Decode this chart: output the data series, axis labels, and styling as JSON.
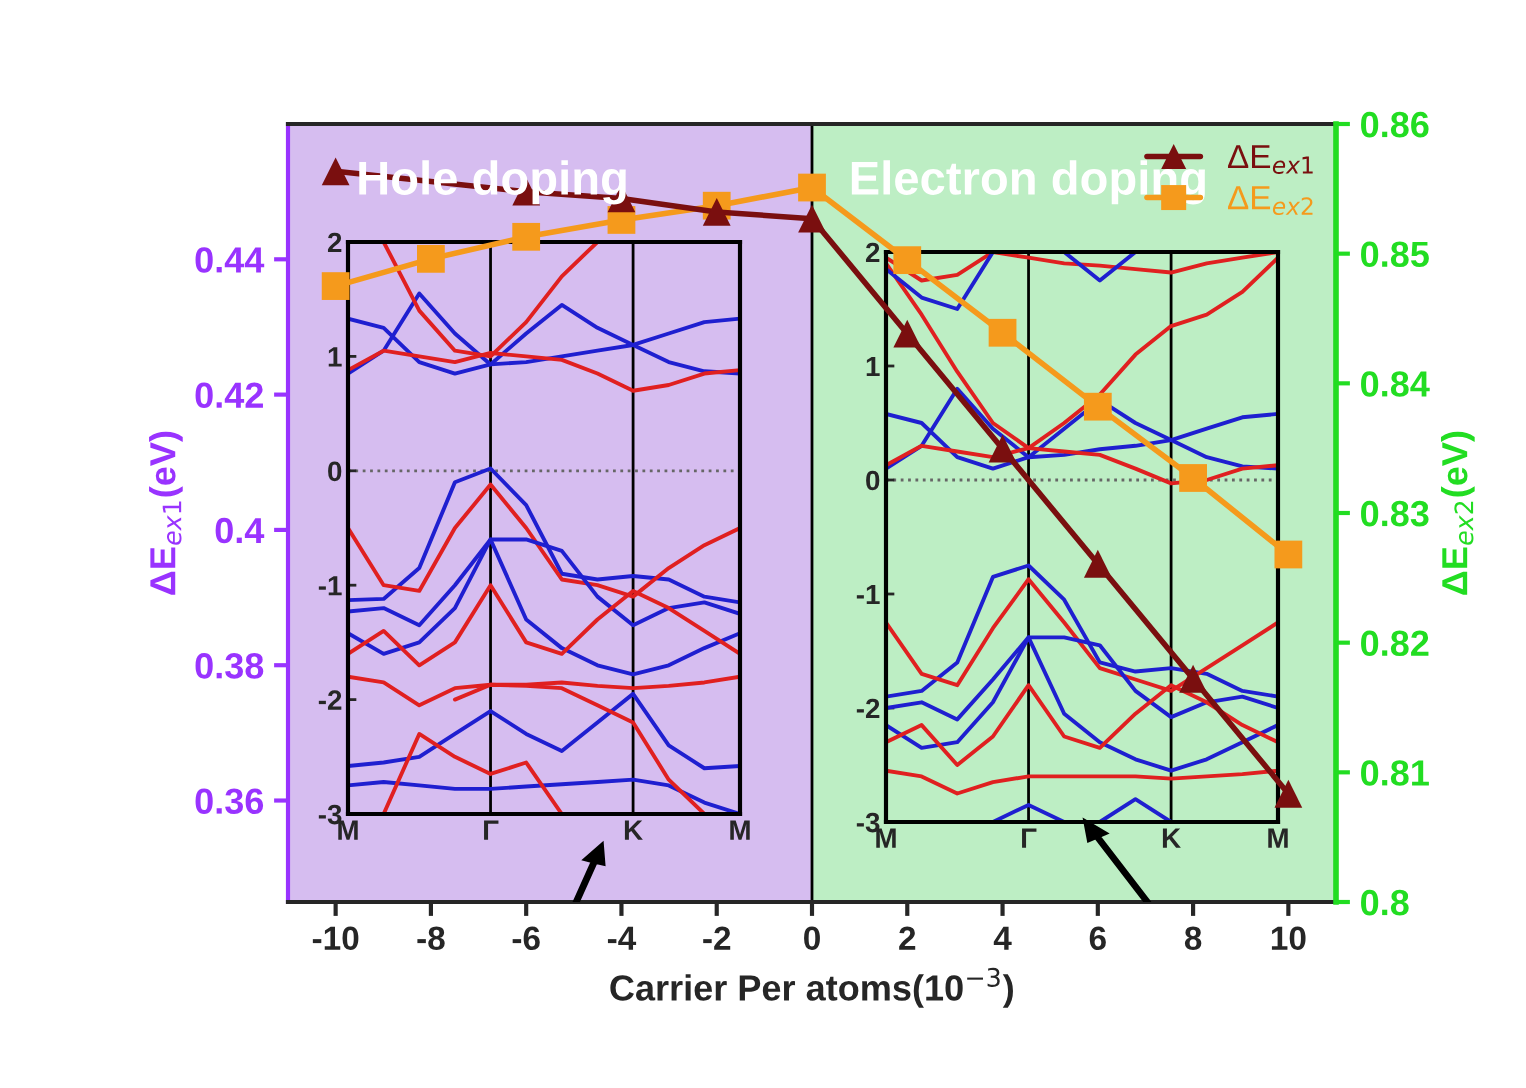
{
  "chart_data": [
    {
      "type": "line",
      "xlabel": "Carrier Per atoms(10$^{−3}$)",
      "ylabel": "ΔE$_{ex1}$(eV)",
      "y2label": "ΔE$_{ex2}$(eV)",
      "xlim": [
        -11,
        11
      ],
      "xticks": [
        -10,
        -8,
        -6,
        -4,
        -2,
        0,
        2,
        4,
        6,
        8,
        10
      ],
      "ylim": [
        0.345,
        0.46
      ],
      "yticks": [
        0.36,
        0.38,
        0.4,
        0.42,
        0.44
      ],
      "y2lim": [
        0.8,
        0.86
      ],
      "y2ticks": [
        0.8,
        0.81,
        0.82,
        0.83,
        0.84,
        0.85,
        0.86
      ],
      "legend": "top right",
      "line_style": "solid",
      "annotations": [
        "Hole doping",
        "Electron doping"
      ],
      "bands": [
        {
          "axis": "x",
          "from": -11,
          "to": 0,
          "label": null,
          "color": "#d6bdf0"
        },
        {
          "axis": "x",
          "from": 0,
          "to": 11,
          "label": null,
          "color": "#bdeec4"
        }
      ],
      "ref_lines": [
        {
          "axis": "x",
          "value": 0,
          "label": null,
          "color": "#000000"
        }
      ],
      "series": [
        {
          "name": "ΔE$_{ex1}$",
          "color": "#7a0f0f",
          "marker": "triangle",
          "x": [
            -10,
            -6,
            -4,
            -2,
            0,
            2,
            4,
            6,
            8,
            10
          ],
          "values": [
            0.453,
            0.45,
            0.449,
            0.447,
            0.446,
            0.429,
            0.412,
            0.395,
            0.378,
            0.361
          ]
        },
        {
          "name": "ΔE$_{ex2}$",
          "color": "#f59a1c",
          "marker": "square",
          "axis": "y2",
          "x": [
            -10,
            -8,
            -6,
            -4,
            -2,
            0,
            2,
            4,
            6,
            8,
            10
          ],
          "values": [
            0.8475,
            0.8496,
            0.8513,
            0.8526,
            0.8537,
            0.8551,
            0.8495,
            0.8439,
            0.8382,
            0.8327,
            0.8268
          ]
        }
      ]
    },
    {
      "type": "line",
      "ylim": [
        -3,
        2
      ],
      "yticks": [
        -3,
        -2,
        -1,
        0,
        1,
        2
      ],
      "categories": [
        "M",
        null,
        null,
        null,
        "Γ",
        null,
        null,
        null,
        "K",
        null,
        null,
        "M"
      ],
      "ref_lines": [
        {
          "axis": "x",
          "value": "Γ",
          "label": null,
          "color": "#000000",
          "line_style": "solid"
        },
        {
          "axis": "x",
          "value": "K",
          "label": null,
          "color": "#000000",
          "line_style": "solid"
        },
        {
          "axis": "y",
          "value": 0,
          "label": null,
          "color": "#666666",
          "line_style": "dotted"
        }
      ],
      "series": [
        {
          "color": "#1f1fd0",
          "values": [
            0.85,
            1.05,
            1.55,
            1.2,
            0.93,
            0.95,
            1.0,
            1.05,
            1.1,
            1.2,
            1.3,
            1.33
          ]
        },
        {
          "color": "#1f1fd0",
          "values": [
            1.33,
            1.25,
            0.95,
            0.85,
            0.93,
            1.2,
            1.45,
            1.25,
            1.1,
            0.95,
            0.87,
            0.85
          ]
        },
        {
          "color": "#e02020",
          "values": [
            0.88,
            1.05,
            1.0,
            0.95,
            1.03,
            1.0,
            0.97,
            0.85,
            0.7,
            0.75,
            0.85,
            0.88
          ]
        },
        {
          "color": "#e02020",
          "values": [
            null,
            2.0,
            1.4,
            1.05,
            1.0,
            1.3,
            1.7,
            2.0,
            null,
            null,
            null,
            null
          ]
        },
        {
          "color": "#1f1fd0",
          "values": [
            -1.13,
            -1.12,
            -0.85,
            -0.1,
            0.02,
            -0.3,
            -0.9,
            -0.95,
            -0.92,
            -0.95,
            -1.1,
            -1.15
          ]
        },
        {
          "color": "#e02020",
          "values": [
            -0.5,
            -1.0,
            -1.05,
            -0.5,
            -0.12,
            -0.5,
            -0.95,
            -1.0,
            -1.1,
            -0.85,
            -0.65,
            -0.5
          ]
        },
        {
          "color": "#1f1fd0",
          "values": [
            -1.23,
            -1.2,
            -1.35,
            -1.0,
            -0.6,
            -0.6,
            -0.7,
            -1.1,
            -1.35,
            -1.2,
            -1.15,
            -1.25
          ]
        },
        {
          "color": "#1f1fd0",
          "values": [
            -1.42,
            -1.6,
            -1.5,
            -1.2,
            -0.6,
            -1.3,
            -1.55,
            -1.7,
            -1.78,
            -1.7,
            -1.55,
            -1.42
          ]
        },
        {
          "color": "#e02020",
          "values": [
            -1.6,
            -1.4,
            -1.7,
            -1.5,
            -1.0,
            -1.5,
            -1.6,
            -1.3,
            -1.05,
            -1.2,
            -1.4,
            -1.6
          ]
        },
        {
          "color": "#e02020",
          "values": [
            -1.8,
            -1.85,
            -2.05,
            -1.9,
            -1.87,
            -1.87,
            -1.85,
            -1.88,
            -1.9,
            -1.88,
            -1.85,
            -1.8
          ]
        },
        {
          "color": "#1f1fd0",
          "values": [
            -2.58,
            -2.55,
            -2.5,
            -2.3,
            -2.1,
            -2.3,
            -2.45,
            -2.2,
            -1.95,
            -2.4,
            -2.6,
            -2.58
          ]
        },
        {
          "color": "#1f1fd0",
          "values": [
            -2.75,
            -2.72,
            -2.75,
            -2.78,
            -2.78,
            -2.76,
            -2.74,
            -2.72,
            -2.7,
            -2.75,
            -2.9,
            -3.0
          ]
        },
        {
          "color": "#e02020",
          "values": [
            null,
            -3.0,
            -2.3,
            -2.5,
            -2.65,
            -2.55,
            -3.0,
            null,
            null,
            null,
            null,
            null
          ]
        },
        {
          "color": "#e02020",
          "values": [
            null,
            null,
            null,
            -2.0,
            -1.87,
            -1.88,
            -1.9,
            -2.05,
            -2.2,
            -2.7,
            -3.0,
            null
          ]
        }
      ]
    },
    {
      "type": "line",
      "ylim": [
        -3,
        2
      ],
      "yticks": [
        -3,
        -2,
        -1,
        0,
        1,
        2
      ],
      "categories": [
        "M",
        null,
        null,
        null,
        "Γ",
        null,
        null,
        null,
        "K",
        null,
        null,
        "M"
      ],
      "ref_lines": [
        {
          "axis": "x",
          "value": "Γ",
          "label": null,
          "color": "#000000",
          "line_style": "solid"
        },
        {
          "axis": "x",
          "value": "K",
          "label": null,
          "color": "#000000",
          "line_style": "solid"
        },
        {
          "axis": "y",
          "value": 0,
          "label": null,
          "color": "#666666",
          "line_style": "dotted"
        }
      ],
      "series": [
        {
          "color": "#1f1fd0",
          "values": [
            0.1,
            0.3,
            0.8,
            0.45,
            0.2,
            0.22,
            0.27,
            0.3,
            0.35,
            0.45,
            0.55,
            0.58
          ]
        },
        {
          "color": "#1f1fd0",
          "values": [
            0.58,
            0.5,
            0.2,
            0.1,
            0.2,
            0.45,
            0.7,
            0.5,
            0.35,
            0.2,
            0.12,
            0.1
          ]
        },
        {
          "color": "#e02020",
          "values": [
            0.13,
            0.3,
            0.25,
            0.2,
            0.28,
            0.25,
            0.22,
            0.1,
            -0.03,
            0.0,
            0.1,
            0.13
          ]
        },
        {
          "color": "#e02020",
          "values": [
            1.9,
            1.45,
            0.95,
            0.5,
            0.28,
            0.5,
            0.75,
            1.1,
            1.35,
            1.45,
            1.65,
            1.95
          ]
        },
        {
          "color": "#e02020",
          "values": [
            1.95,
            1.75,
            1.8,
            2.0,
            1.95,
            1.9,
            1.88,
            1.85,
            1.82,
            1.9,
            1.95,
            2.0
          ]
        },
        {
          "color": "#1f1fd0",
          "values": [
            1.85,
            1.6,
            1.5,
            2.0,
            null,
            null,
            null,
            null,
            null,
            null,
            null,
            null
          ]
        },
        {
          "color": "#1f1fd0",
          "values": [
            null,
            null,
            null,
            null,
            null,
            2.0,
            1.75,
            2.0,
            null,
            null,
            null,
            null
          ]
        },
        {
          "color": "#1f1fd0",
          "values": [
            -1.9,
            -1.85,
            -1.6,
            -0.85,
            -0.75,
            -1.05,
            -1.6,
            -1.68,
            -1.65,
            -1.7,
            -1.85,
            -1.9
          ]
        },
        {
          "color": "#e02020",
          "values": [
            -1.25,
            -1.7,
            -1.8,
            -1.3,
            -0.87,
            -1.25,
            -1.65,
            -1.75,
            -1.85,
            -1.65,
            -1.45,
            -1.25
          ]
        },
        {
          "color": "#1f1fd0",
          "values": [
            -2.0,
            -1.95,
            -2.1,
            -1.75,
            -1.38,
            -1.38,
            -1.45,
            -1.85,
            -2.08,
            -1.95,
            -1.9,
            -2.0
          ]
        },
        {
          "color": "#1f1fd0",
          "values": [
            -2.15,
            -2.35,
            -2.3,
            -1.95,
            -1.38,
            -2.05,
            -2.3,
            -2.45,
            -2.55,
            -2.45,
            -2.3,
            -2.15
          ]
        },
        {
          "color": "#e02020",
          "values": [
            -2.3,
            -2.15,
            -2.5,
            -2.25,
            -1.8,
            -2.25,
            -2.35,
            -2.05,
            -1.8,
            -1.95,
            -2.15,
            -2.3
          ]
        },
        {
          "color": "#e02020",
          "values": [
            -2.55,
            -2.6,
            -2.75,
            -2.65,
            -2.6,
            -2.6,
            -2.6,
            -2.6,
            -2.62,
            -2.6,
            -2.58,
            -2.55
          ]
        },
        {
          "color": "#1f1fd0",
          "values": [
            null,
            null,
            null,
            -3.0,
            -2.85,
            -3.0,
            null,
            null,
            null,
            null,
            null,
            null
          ]
        },
        {
          "color": "#1f1fd0",
          "values": [
            null,
            null,
            null,
            null,
            null,
            null,
            -3.0,
            -2.8,
            -3.0,
            null,
            null,
            null
          ]
        }
      ]
    }
  ]
}
